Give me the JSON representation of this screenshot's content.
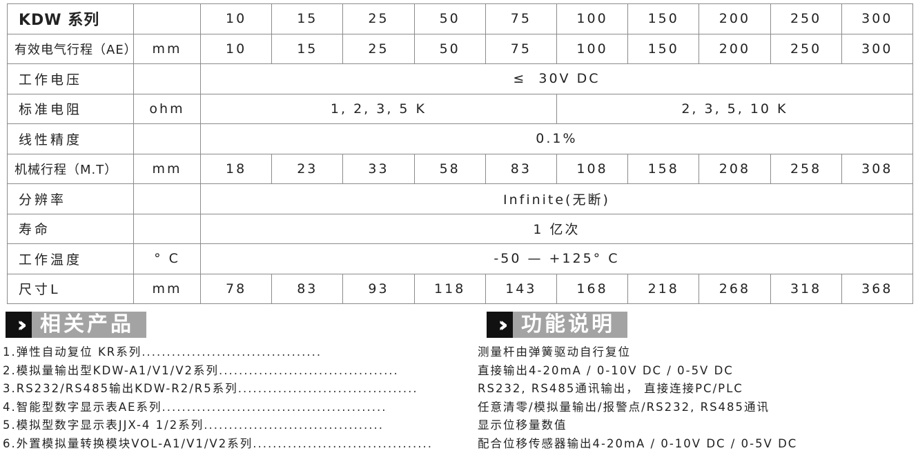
{
  "table": {
    "title": "KDW 系列",
    "header_values": [
      "10",
      "15",
      "25",
      "50",
      "75",
      "100",
      "150",
      "200",
      "250",
      "300"
    ],
    "rows": {
      "ae": {
        "label": "有效电气行程（AE）",
        "unit": "mm",
        "values": [
          "10",
          "15",
          "25",
          "50",
          "75",
          "100",
          "150",
          "200",
          "250",
          "300"
        ]
      },
      "voltage": {
        "label": "工作电压",
        "unit": "",
        "value": "≤  30V DC"
      },
      "resistance": {
        "label": "标准电阻",
        "unit": "ohm",
        "value_a": "1, 2, 3, 5 K",
        "value_b": "2, 3, 5, 10 K"
      },
      "linearity": {
        "label": "线性精度",
        "unit": "",
        "value": "0.1%"
      },
      "mt": {
        "label": "机械行程（M.T）",
        "unit": "mm",
        "values": [
          "18",
          "23",
          "33",
          "58",
          "83",
          "108",
          "158",
          "208",
          "258",
          "308"
        ]
      },
      "resolution": {
        "label": "分辨率",
        "unit": "",
        "value": "Infinite(无断)"
      },
      "life": {
        "label": "寿命",
        "unit": "",
        "value": "1 亿次"
      },
      "temperature": {
        "label": "工作温度",
        "unit": "° C",
        "value": "-50 — +125° C"
      },
      "size": {
        "label": "尺寸L",
        "unit": "mm",
        "values": [
          "78",
          "83",
          "93",
          "118",
          "143",
          "168",
          "218",
          "268",
          "318",
          "368"
        ]
      }
    }
  },
  "related": {
    "heading": "相关产品",
    "items": [
      "1.弹性自动复位 KR系列",
      "2.模拟量输出型KDW-A1/V1/V2系列",
      "3.RS232/RS485输出KDW-R2/R5系列",
      "4.智能型数字显示表AE系列",
      "5.模拟型数字显示表JJX-4 1/2系列",
      "6.外置模拟量转换模块VOL-A1/V1/V2系列"
    ]
  },
  "functions": {
    "heading": "功能说明",
    "items": [
      "测量杆由弹簧驱动自行复位",
      "直接输出4-20mA / 0-10V DC / 0-5V DC",
      "RS232, RS485通讯输出， 直接连接PC/PLC",
      "任意清零/模拟量输出/报警点/RS232, RS485通讯",
      "显示位移量数值",
      "配合位移传感器输出4-20mA / 0-10V DC / 0-5V DC"
    ]
  }
}
